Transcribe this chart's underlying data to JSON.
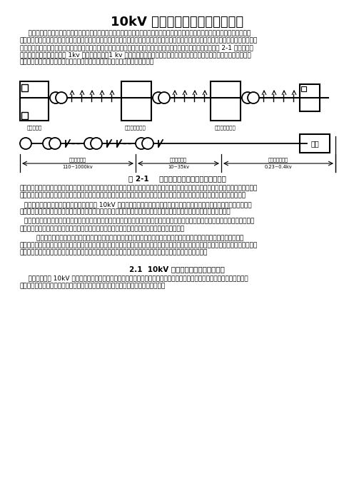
{
  "title": "10kV 以下架空线路工程施工工艺",
  "para1": "    电力系统是由不同电压等级的电力线路组成的一个发电、输电、配电、用电的整体，开有发电厂、输电网、配电网和电力用户组成的整体，是将一次能源转换成电能并传送和分配到用户的一个统一系统。输电网和配电网统称为电网，是电力系统的重要组成部分。发电厂将一次能源转换成电能，经过电网将电能输送和分配到电力用户的用户设备，从而完成电能从点产到使用的整个过程。如图 2-1 电力系统采用架空线路形式示意图，将 1kv 以上称为高压，1 kv 以下称为低压。电力系统还应保证其安全可靠运行的继电保护装置、安全自动装置、电能自动化系统和电力通信等相应的辅助系统（一般称为二次系统）。",
  "caption": "图 2-1    电力系统采用架空线路形式示意图",
  "label_sheng": "升压变电所",
  "label_yi": "一次降压变电所",
  "label_er": "二次降压变电所",
  "label_user": "用户",
  "dim_high_label": "高压输电线路",
  "dim_high_val": "110~1000kv",
  "dim_mid_label": "高压配电线路",
  "dim_mid_val": "10~35kv",
  "dim_low_label": "低压输配电线路",
  "dim_low_val": "0.23~0.4kv",
  "para2": "输电网是电力系统中最高电压等级的电网，指架设在升压变电所与一次降压变电所之间并行通路，专门用于输送电能，是电力系统中的主要网络（简称主网），在一个现代电力系统中既有远高压交流输电，又有超高压直流输电。这种输电系统通常称为交、直流高合输电系统。",
  "para3": "  配电网是从一次降压变电所至各用户之间传 10kV 或以下线路，它将电能从都级变电站直接分配到用户区及用户，它的作用是将电力分配到配电变电站而再向用户供电，也有一部分电力不经配电变电站，直接分配到大用户，由大用户的配电装置进行配电。",
  "para4": "  在电力系统中，电网按电压等级的高低分类，也可按覆盖的地域分区。不同家宣的发电厂和用户之分别接入不同电压等级的主网，大家宣主力电网应接入主网，较大家宣村电厂应接入城南区的电网，家宣较小时可接入较低电压的电网。",
  "para5": "        电力系统的出现，使而发、无污源、使用方便、易于输送的电能得到广泛应用，推动了社会生产本个朝胜的变化，开创了电力时代，发走了第二次技术革命。电力系统规模能源技术水准已成为一个国家经济发展水平的标志之一。一般来说，特电力线路综合为室外地产的两种形式。其中，架空线路、电缆线路属于室外施工形式；线槽、桥架、套管、线管等属于室内施工形式。",
  "section_title": "2.1  10kV 以下架空线路施工基础知识",
  "section_para": "    本节主要介绍 10kV 以下架空线路工程规则，架空线路的相关知识，架空线路常用材料线路以及架空线路安装工艺流程，架空线路施工质量验收，架空线路有关对线控制方法，有关了解架空线路相关知识的认识。"
}
